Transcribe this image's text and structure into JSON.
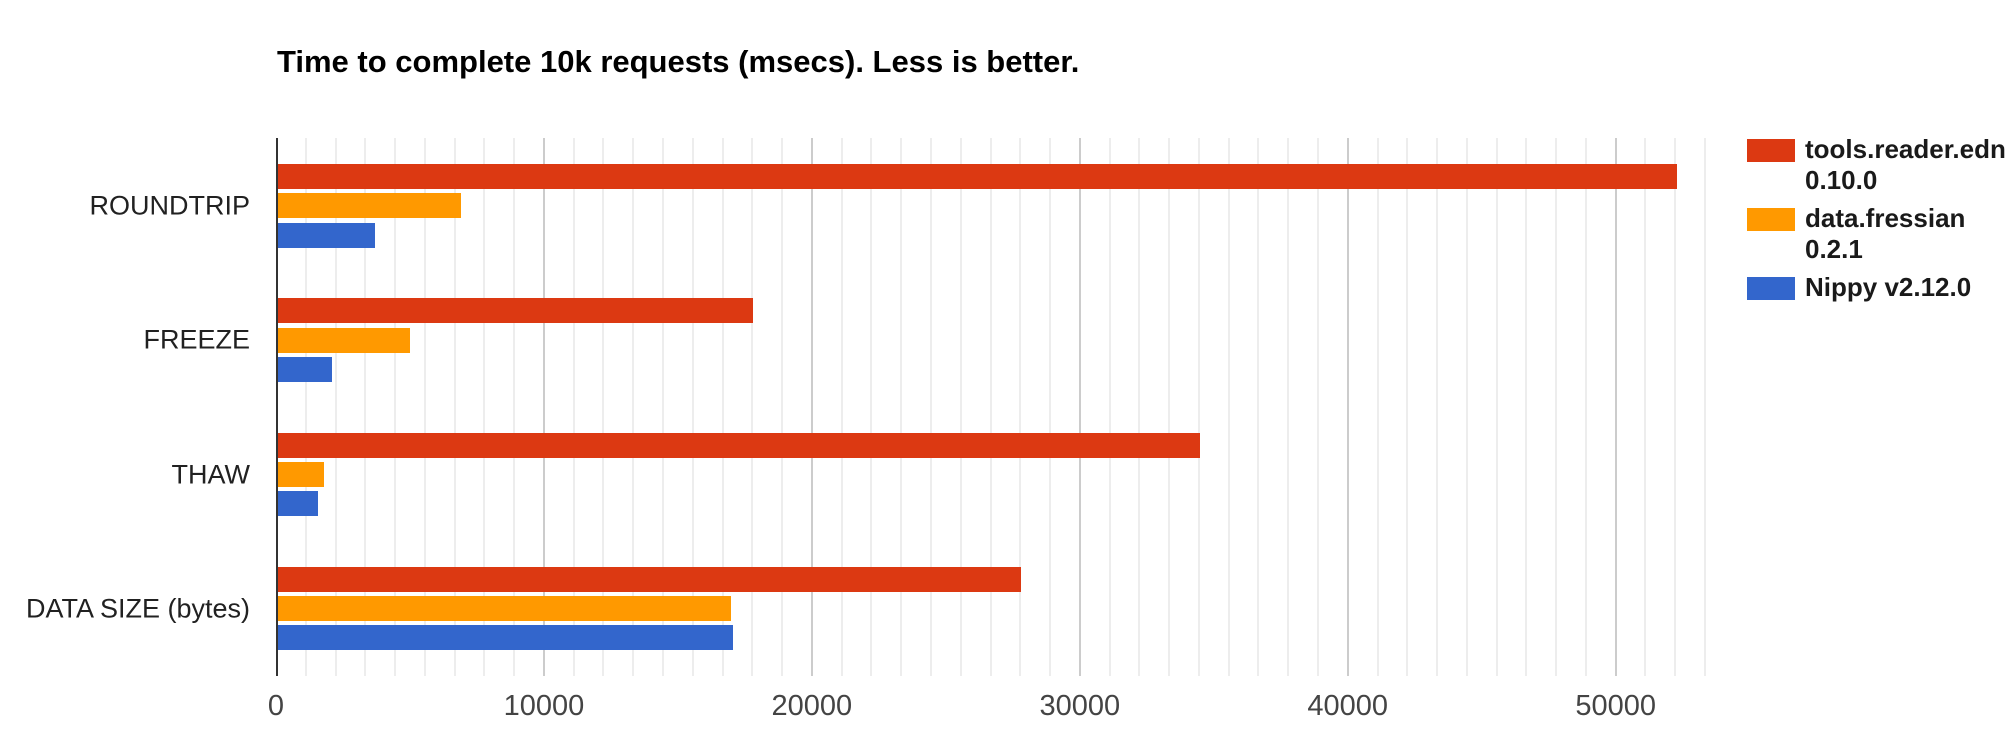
{
  "chart_data": {
    "type": "bar",
    "orientation": "horizontal",
    "title": "Time to complete 10k requests (msecs). Less is better.",
    "xlabel": "",
    "ylabel": "",
    "categories": [
      "ROUNDTRIP",
      "FREEZE",
      "THAW",
      "DATA SIZE (bytes)"
    ],
    "series": [
      {
        "name": "tools.reader.edn 0.10.0",
        "legend_lines": [
          "tools.reader.edn",
          "0.10.0"
        ],
        "color": "#DC3912",
        "values": [
          52300,
          17800,
          34500,
          27800
        ]
      },
      {
        "name": "data.fressian 0.2.1",
        "legend_lines": [
          "data.fressian",
          "0.2.1"
        ],
        "color": "#FF9900",
        "values": [
          6900,
          5000,
          1800,
          17000
        ]
      },
      {
        "name": "Nippy v2.12.0",
        "legend_lines": [
          "Nippy v2.12.0"
        ],
        "color": "#3366CC",
        "values": [
          3700,
          2100,
          1550,
          17050
        ]
      }
    ],
    "xlim": [
      0,
      53333
    ],
    "x_ticks": [
      0,
      10000,
      20000,
      30000,
      40000,
      50000
    ],
    "x_tick_labels": [
      "0",
      "10000",
      "20000",
      "30000",
      "40000",
      "50000"
    ],
    "minor_gridlines_per_major": 9,
    "grid": true,
    "legend_position": "right",
    "colors": {
      "background": "#ffffff",
      "axis_line": "#333333",
      "minor_gridline": "#ededed",
      "major_gridline": "#cccccc",
      "tick_label": "#444444",
      "category_label": "#212121",
      "title_text": "#000000",
      "legend_text": "#1a1a1a"
    }
  }
}
